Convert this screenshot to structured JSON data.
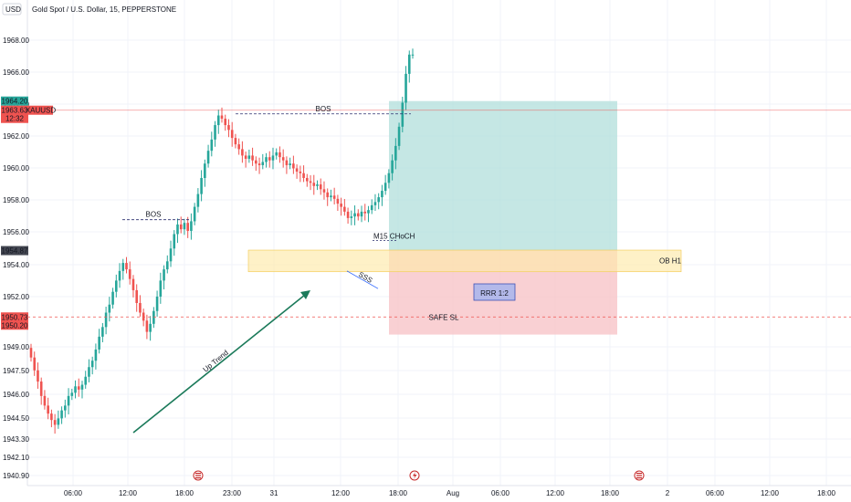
{
  "header": {
    "currency": "USD",
    "legend": "Gold Spot / U.S. Dollar, 15, PEPPERSTONE"
  },
  "colors": {
    "up": "#26a69a",
    "down": "#ef5350",
    "bos": "#2a2e6e",
    "profit_zone": "#b2dfdb",
    "loss_zone": "#f8c4c8",
    "ob_zone": "#fde9a9",
    "trend_arrow": "#1b7a5a",
    "price_line": "#ef5350",
    "safe_sl": "#ef5350"
  },
  "chart_data": {
    "type": "candlestick",
    "symbol": "XAUUSD",
    "interval": "15",
    "ylim": [
      1940.9,
      1968.0
    ],
    "y_ticks": [
      "1968.00",
      "1966.00",
      "1964.00",
      "1962.00",
      "1960.00",
      "1958.00",
      "1956.00",
      "1954.00",
      "1952.00",
      "1949.00",
      "1947.50",
      "1946.00",
      "1944.50",
      "1943.30",
      "1942.10",
      "1940.90"
    ],
    "x_ticks": [
      "06:00",
      "12:00",
      "18:00",
      "23:00",
      "31",
      "12:00",
      "18:00",
      "Aug",
      "06:00",
      "12:00",
      "18:00",
      "2",
      "06:00",
      "12:00",
      "18:00"
    ],
    "price_labels": [
      {
        "text": "1964.20",
        "value": 1964.2,
        "color": "#26a69a"
      },
      {
        "text": "1963.63",
        "value": 1963.63,
        "color": "#ef5350",
        "tag": "XAUUSD"
      },
      {
        "text": "12:32",
        "value": 1963.1,
        "color": "#ef5350"
      },
      {
        "text": "1954.87",
        "value": 1954.87,
        "color": "#434651"
      },
      {
        "text": "1950.73",
        "value": 1950.73,
        "color": "#ef5350"
      },
      {
        "text": "1950.20",
        "value": 1950.2,
        "color": "#ef5350"
      }
    ],
    "candles": {
      "start_close": 1948.8,
      "steps": [
        -0.6,
        -0.8,
        -0.7,
        -0.9,
        -0.6,
        -0.5,
        -0.4,
        -0.3,
        0.4,
        0.5,
        0.3,
        0.6,
        0.2,
        0.4,
        -0.2,
        0.3,
        0.5,
        0.6,
        0.4,
        0.7,
        0.8,
        0.6,
        0.9,
        0.5,
        0.8,
        0.7,
        0.6,
        0.5,
        -0.4,
        -0.6,
        -0.7,
        -0.8,
        -0.6,
        -0.5,
        -0.7,
        0.5,
        0.8,
        0.9,
        1.0,
        0.7,
        0.5,
        0.8,
        0.9,
        0.6,
        -0.3,
        0.4,
        -0.5,
        0.6,
        0.9,
        0.8,
        1.0,
        0.9,
        0.8,
        0.7,
        0.9,
        0.6,
        -0.2,
        -0.4,
        -0.3,
        -0.5,
        -0.4,
        -0.3,
        -0.4,
        -0.2,
        0.2,
        -0.3,
        -0.2,
        -0.1,
        0.2,
        0.3,
        -0.2,
        0.3,
        0.2,
        -0.3,
        -0.2,
        -0.3,
        0.1,
        -0.3,
        -0.2,
        -0.1,
        -0.3,
        -0.2,
        -0.1,
        -0.2,
        0.1,
        -0.3,
        -0.2,
        -0.3,
        0.1,
        -0.2,
        -0.3,
        -0.2,
        -0.3,
        -0.4,
        0.1,
        0.2,
        -0.2,
        0.3,
        -0.1,
        0.2,
        0.3,
        0.2,
        0.3,
        0.4,
        0.5,
        0.6,
        0.8,
        0.9,
        1.2,
        1.5,
        1.8,
        1.2,
        0.0
      ]
    },
    "annotations": {
      "bos_labels": [
        "BOS",
        "BOS"
      ],
      "choch_label": "M15 CHoCH",
      "trend_label": "Up Trend",
      "ob_label": "OB H1",
      "rrr_label": "RRR 1:2",
      "safe_sl_label": "SAFE SL",
      "sweep_label": "SSS"
    }
  }
}
